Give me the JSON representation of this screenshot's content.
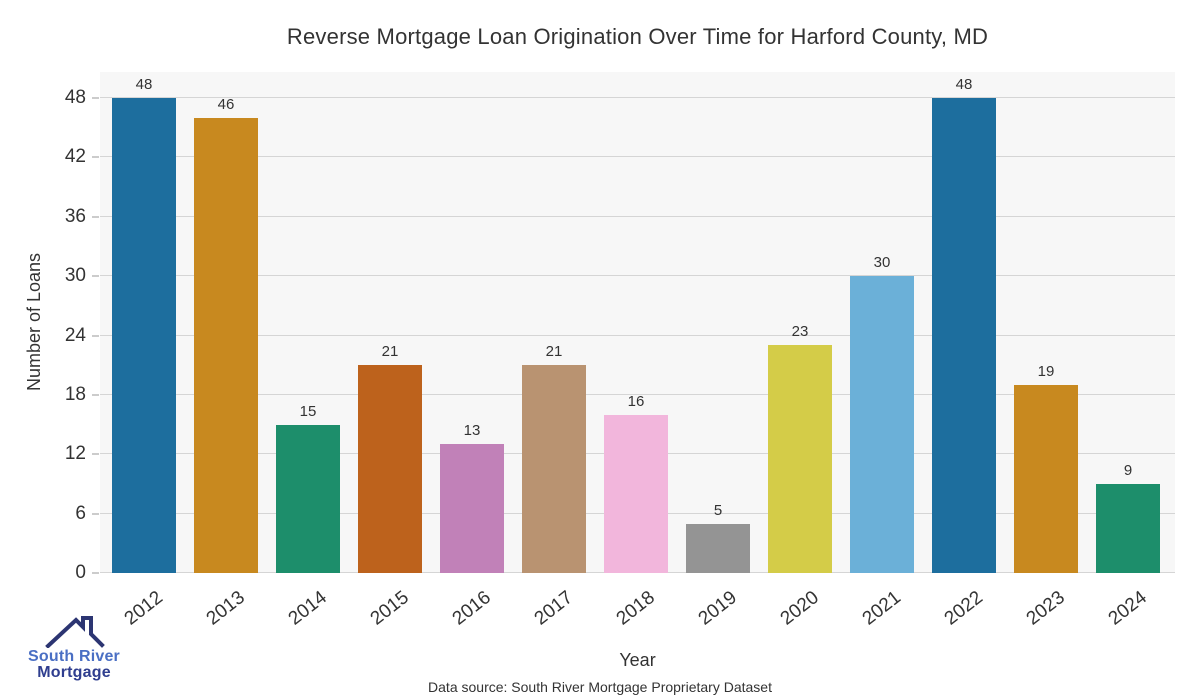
{
  "title": "Reverse Mortgage Loan Origination Over Time for Harford County, MD",
  "chart_data": {
    "type": "bar",
    "title": "Reverse Mortgage Loan Origination Over Time for Harford County, MD",
    "categories": [
      "2012",
      "2013",
      "2014",
      "2015",
      "2016",
      "2017",
      "2018",
      "2019",
      "2020",
      "2021",
      "2022",
      "2023",
      "2024"
    ],
    "values": [
      48,
      46,
      15,
      21,
      13,
      21,
      16,
      5,
      23,
      30,
      48,
      19,
      9
    ],
    "bar_colors": [
      "#1d6e9e",
      "#c8891f",
      "#1d8e6b",
      "#bd621c",
      "#c181b8",
      "#b99371",
      "#f2b6dc",
      "#949494",
      "#d4cc48",
      "#6bb0d8",
      "#1d6e9e",
      "#c8891f",
      "#1d8e6b"
    ],
    "xlabel": "Year",
    "ylabel": "Number of Loans",
    "yticks": [
      0,
      6,
      12,
      18,
      24,
      30,
      36,
      42,
      48
    ],
    "ylim": [
      0,
      50.6
    ],
    "grid": true,
    "legend": "none",
    "value_labels_shown": true
  },
  "footer": {
    "data_source": "Data source: South River Mortgage Proprietary Dataset"
  },
  "logo": {
    "line1": "South River",
    "line2": "Mortgage",
    "roof_color": "#2c3572",
    "line1_color": "#4a6fc4",
    "line2_color": "#2f3e8f"
  },
  "colors": {
    "plot_bg": "#f7f7f7",
    "gridline": "#d5d5d5",
    "axis_text": "#333333",
    "tick_mark": "#cccccc",
    "title_text": "#333333"
  }
}
